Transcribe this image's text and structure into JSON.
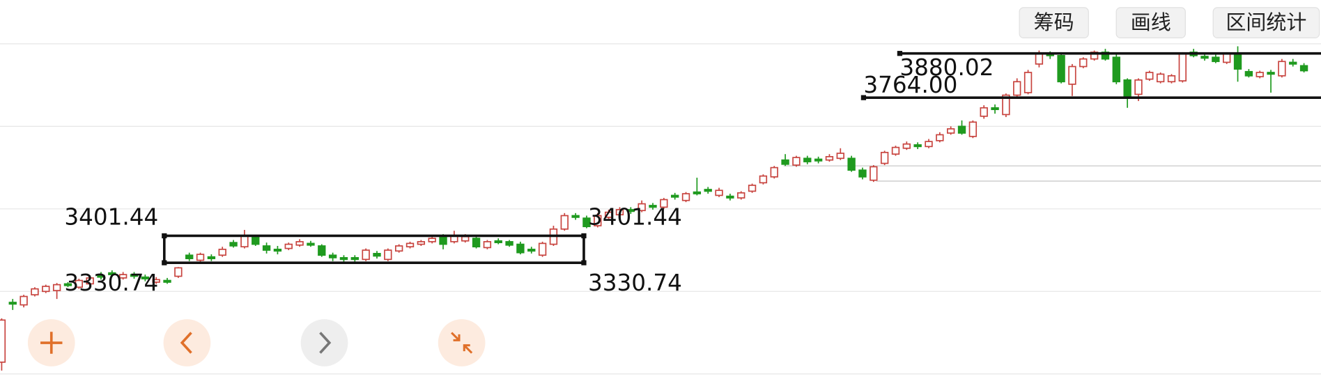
{
  "toolbar": [
    "筹码",
    "画线",
    "区间统计"
  ],
  "chart_data": {
    "type": "candlestick",
    "up_color": "#c8443f",
    "down_color": "#1f9a1f",
    "ylim": [
      3025.7,
      4020.2
    ],
    "open": [
      3069.9,
      3226.8,
      3220.2,
      3246.7,
      3255.5,
      3257.8,
      3275.4,
      3266.6,
      3275.4,
      3297.5,
      3304.2,
      3290.9,
      3299.7,
      3293.1,
      3279.8,
      3284.3,
      3295.3,
      3350.6,
      3337.3,
      3346.2,
      3350.6,
      3383.7,
      3372.7,
      3397.0,
      3374.9,
      3366.0,
      3368.3,
      3377.1,
      3381.5,
      3374.9,
      3350.6,
      3344.0,
      3344.0,
      3339.5,
      3355.0,
      3339.5,
      3361.6,
      3372.7,
      3379.3,
      3386.0,
      3401.4,
      3386.0,
      3388.1,
      3394.8,
      3370.5,
      3388.1,
      3386.0,
      3379.3,
      3366.0,
      3350.6,
      3379.3,
      3419.1,
      3454.4,
      3447.8,
      3427.9,
      3450.0,
      3456.7,
      3470.0,
      3467.7,
      3481.0,
      3476.6,
      3507.5,
      3494.2,
      3516.3,
      3523.0,
      3507.5,
      3505.3,
      3500.9,
      3518.5,
      3540.6,
      3556.1,
      3600.3,
      3587.0,
      3604.7,
      3602.5,
      3600.3,
      3604.7,
      3604.7,
      3573.8,
      3547.3,
      3591.5,
      3615.8,
      3631.2,
      3640.1,
      3635.7,
      3651.1,
      3671.0,
      3688.7,
      3662.2,
      3715.2,
      3737.3,
      3719.6,
      3770.5,
      3777.1,
      3852.2,
      3878.8,
      3874.3,
      3799.2,
      3845.6,
      3865.5,
      3883.2,
      3869.9,
      3810.3,
      3772.7,
      3812.5,
      3805.8,
      3805.8,
      3808.0,
      3883.2,
      3872.1,
      3869.9,
      3856.7,
      3878.8,
      3832.3,
      3819.1,
      3830.1,
      3821.3,
      3856.7,
      3847.8
    ],
    "high": [
      3184.8,
      3235.7,
      3246.7,
      3266.6,
      3273.2,
      3277.6,
      3279.8,
      3288.7,
      3297.5,
      3306.4,
      3310.8,
      3306.4,
      3306.4,
      3299.7,
      3293.1,
      3290.9,
      3319.6,
      3357.2,
      3357.2,
      3352.8,
      3372.7,
      3390.4,
      3416.9,
      3403.6,
      3383.7,
      3374.9,
      3383.7,
      3392.6,
      3388.1,
      3379.3,
      3357.2,
      3350.6,
      3350.6,
      3368.3,
      3361.6,
      3368.3,
      3379.3,
      3386.0,
      3390.4,
      3401.4,
      3405.8,
      3414.7,
      3405.8,
      3401.4,
      3390.4,
      3394.8,
      3390.4,
      3386.0,
      3372.7,
      3386.0,
      3427.9,
      3461.1,
      3461.1,
      3454.4,
      3461.1,
      3470.0,
      3476.6,
      3476.6,
      3494.2,
      3487.6,
      3500.9,
      3514.1,
      3516.3,
      3553.9,
      3529.6,
      3527.4,
      3511.9,
      3518.5,
      3538.4,
      3562.7,
      3584.8,
      3615.8,
      3611.4,
      3611.4,
      3609.1,
      3615.8,
      3631.2,
      3611.4,
      3580.4,
      3587.0,
      3624.6,
      3637.9,
      3648.9,
      3646.7,
      3655.5,
      3673.2,
      3688.7,
      3704.2,
      3704.2,
      3744.0,
      3746.2,
      3774.9,
      3814.7,
      3836.8,
      3887.6,
      3885.4,
      3883.2,
      3852.2,
      3869.9,
      3887.6,
      3892.0,
      3878.8,
      3814.7,
      3814.7,
      3834.6,
      3830.1,
      3825.7,
      3883.2,
      3892.0,
      3878.8,
      3876.6,
      3883.2,
      3898.7,
      3839.0,
      3834.6,
      3836.8,
      3865.5,
      3865.5,
      3854.5
    ],
    "low": [
      3047.8,
      3206.9,
      3213.6,
      3242.3,
      3251.1,
      3235.7,
      3266.6,
      3262.2,
      3268.8,
      3286.5,
      3293.1,
      3286.5,
      3288.7,
      3282.1,
      3275.4,
      3275.4,
      3290.9,
      3335.1,
      3332.9,
      3335.1,
      3346.2,
      3370.5,
      3368.3,
      3374.9,
      3355.0,
      3352.8,
      3363.8,
      3372.7,
      3372.7,
      3346.2,
      3335.1,
      3332.9,
      3332.9,
      3335.1,
      3341.7,
      3335.1,
      3357.2,
      3368.3,
      3374.9,
      3381.5,
      3366.0,
      3381.5,
      3383.7,
      3368.3,
      3366.0,
      3379.3,
      3372.7,
      3352.8,
      3355.0,
      3346.2,
      3374.9,
      3414.7,
      3443.4,
      3421.3,
      3423.5,
      3445.6,
      3452.2,
      3458.9,
      3463.3,
      3470.0,
      3472.1,
      3496.4,
      3489.8,
      3507.5,
      3511.9,
      3503.1,
      3494.2,
      3496.4,
      3514.1,
      3536.2,
      3551.7,
      3584.8,
      3582.6,
      3589.2,
      3591.5,
      3595.9,
      3600.3,
      3569.4,
      3549.5,
      3542.8,
      3587.0,
      3611.4,
      3626.8,
      3629.0,
      3631.2,
      3646.7,
      3666.6,
      3666.6,
      3657.8,
      3708.6,
      3721.9,
      3713.0,
      3766.0,
      3772.7,
      3843.4,
      3865.5,
      3801.4,
      3768.3,
      3841.2,
      3861.1,
      3861.1,
      3799.2,
      3737.3,
      3755.0,
      3808.0,
      3801.4,
      3801.4,
      3803.6,
      3869.9,
      3861.1,
      3854.5,
      3852.2,
      3805.8,
      3816.9,
      3814.7,
      3777.1,
      3816.9,
      3845.6,
      3830.1
    ],
    "close": [
      3180.4,
      3222.4,
      3242.3,
      3262.2,
      3268.8,
      3273.2,
      3271.0,
      3284.3,
      3290.9,
      3293.1,
      3299.7,
      3299.7,
      3295.3,
      3288.7,
      3286.5,
      3279.8,
      3317.4,
      3341.7,
      3352.8,
      3341.7,
      3366.0,
      3375.0,
      3401.4,
      3379.3,
      3363.8,
      3361.6,
      3379.3,
      3386.0,
      3377.1,
      3350.6,
      3344.0,
      3339.5,
      3339.5,
      3363.8,
      3348.4,
      3363.8,
      3374.9,
      3381.5,
      3386.0,
      3394.8,
      3379.3,
      3401.4,
      3399.2,
      3372.7,
      3386.0,
      3383.7,
      3377.1,
      3357.2,
      3361.6,
      3381.5,
      3419.1,
      3454.4,
      3450.0,
      3425.7,
      3454.4,
      3463.3,
      3470.0,
      3465.5,
      3485.4,
      3476.6,
      3496.4,
      3503.1,
      3511.9,
      3511.9,
      3518.5,
      3520.7,
      3500.9,
      3514.1,
      3534.0,
      3558.3,
      3580.4,
      3589.2,
      3606.9,
      3595.9,
      3598.1,
      3609.1,
      3618.0,
      3573.8,
      3556.1,
      3582.6,
      3620.2,
      3633.4,
      3642.3,
      3635.7,
      3648.9,
      3666.6,
      3682.1,
      3671.0,
      3699.8,
      3737.3,
      3732.9,
      3770.5,
      3805.8,
      3830.1,
      3881.0,
      3874.3,
      3805.8,
      3845.6,
      3865.5,
      3883.2,
      3865.5,
      3805.8,
      3766.0,
      3810.3,
      3830.1,
      3825.7,
      3821.3,
      3878.8,
      3874.3,
      3867.7,
      3858.9,
      3878.8,
      3839.0,
      3821.3,
      3830.1,
      3825.7,
      3858.9,
      3852.2,
      3834.6
    ],
    "range_box": {
      "top": {
        "value": 3401.44,
        "label": "3401.44"
      },
      "bottom": {
        "value": 3330.74,
        "label": "3330.74"
      }
    },
    "price_lines": [
      {
        "value": 3880.02,
        "label": "3880.02"
      },
      {
        "value": 3764.0,
        "label": "3764.00"
      }
    ]
  }
}
